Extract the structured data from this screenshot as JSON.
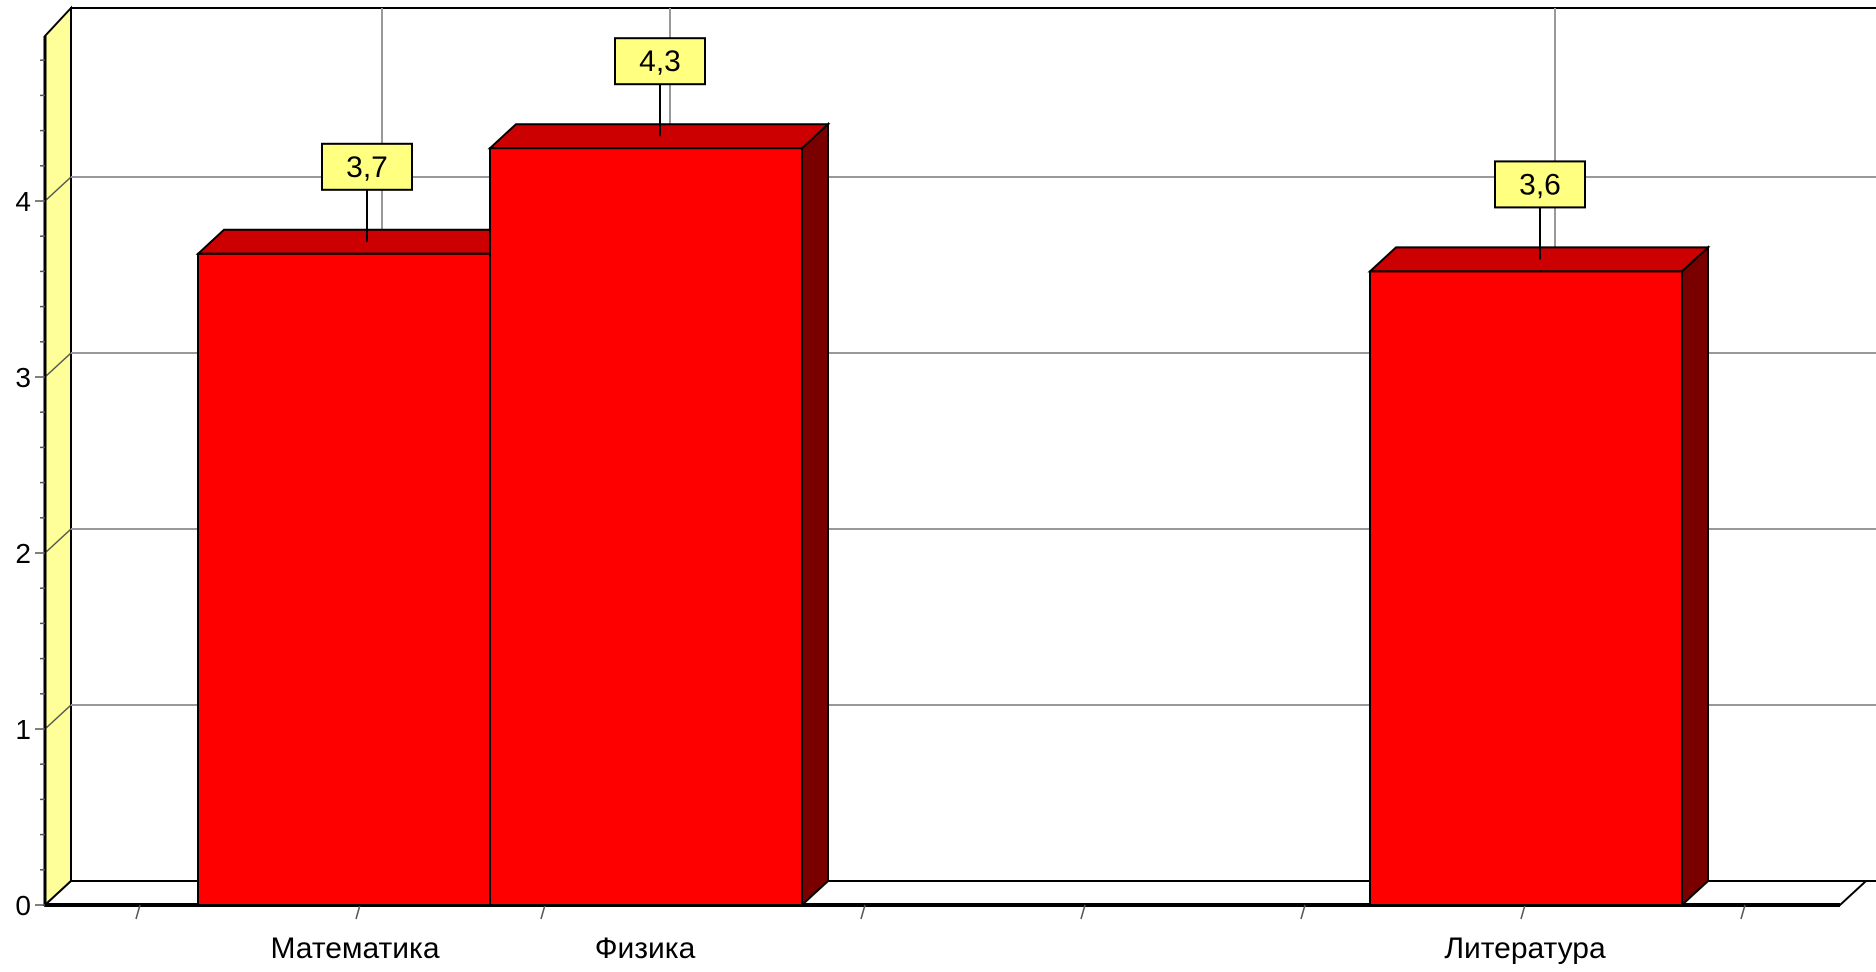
{
  "chart_data": {
    "type": "bar",
    "style": "3d",
    "categories": [
      "Математика",
      "Физика",
      "Литература"
    ],
    "values": [
      3.7,
      4.3,
      3.6
    ],
    "value_labels": [
      "3,7",
      "4,3",
      "3,6"
    ],
    "ylim": [
      0,
      5
    ],
    "yticks": [
      0,
      1,
      2,
      3,
      4
    ],
    "ytick_labels": [
      "0",
      "1",
      "2",
      "3",
      "4"
    ],
    "grid": true,
    "colors": {
      "bar_front": "#ff0000",
      "bar_top": "#cc0000",
      "bar_side": "#7a0000",
      "label_box": "#ffff80",
      "wall_left": "#ffff99",
      "grid": "#999999"
    }
  }
}
